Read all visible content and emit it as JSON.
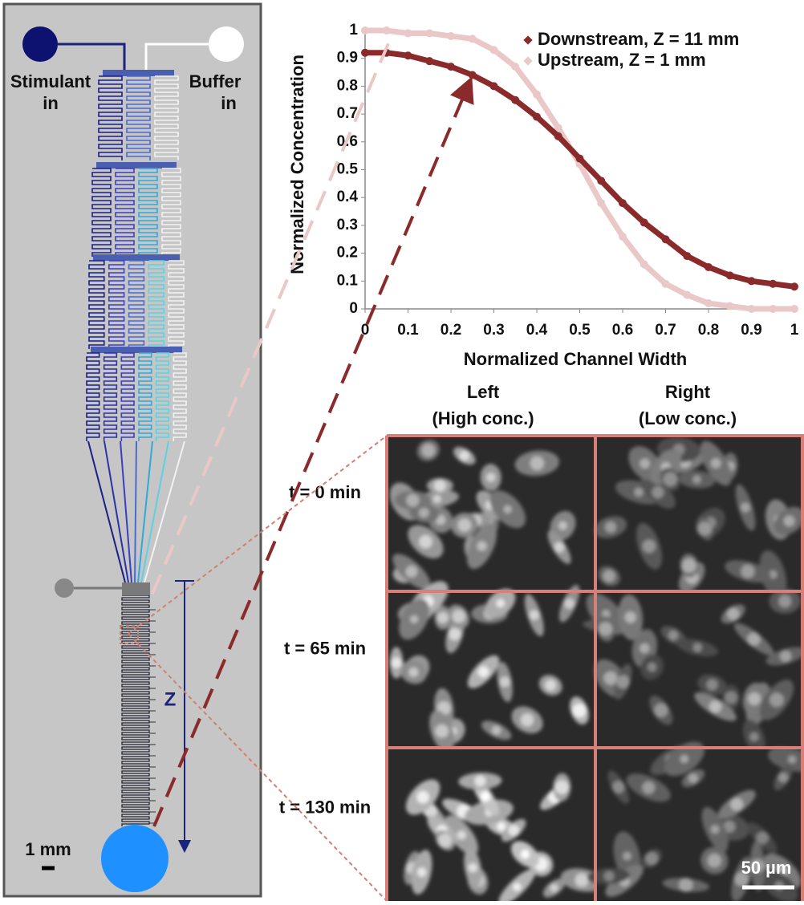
{
  "chart_data": {
    "type": "scatter",
    "x_label": "Normalized Channel Width",
    "y_label": "Normalized Concentration",
    "x": [
      0,
      0.05,
      0.1,
      0.15,
      0.2,
      0.25,
      0.3,
      0.35,
      0.4,
      0.45,
      0.5,
      0.55,
      0.6,
      0.65,
      0.7,
      0.75,
      0.8,
      0.85,
      0.9,
      0.95,
      1
    ],
    "series": [
      {
        "name": "Downstream, Z = 11 mm",
        "color": "#8b2a2a",
        "values": [
          0.92,
          0.92,
          0.91,
          0.89,
          0.87,
          0.84,
          0.8,
          0.75,
          0.69,
          0.62,
          0.54,
          0.46,
          0.38,
          0.31,
          0.25,
          0.19,
          0.15,
          0.12,
          0.1,
          0.09,
          0.08
        ]
      },
      {
        "name": "Upstream, Z = 1 mm",
        "color": "#ebc8c8",
        "values": [
          1.0,
          1.0,
          0.99,
          0.99,
          0.98,
          0.97,
          0.93,
          0.87,
          0.77,
          0.65,
          0.52,
          0.38,
          0.26,
          0.16,
          0.09,
          0.05,
          0.02,
          0.01,
          0.0,
          0.0,
          0.0
        ]
      }
    ],
    "xlim": [
      0,
      1
    ],
    "ylim": [
      0,
      1
    ],
    "xticks": [
      0,
      0.1,
      0.2,
      0.3,
      0.4,
      0.5,
      0.6,
      0.7,
      0.8,
      0.9,
      1
    ],
    "yticks": [
      0,
      0.1,
      0.2,
      0.3,
      0.4,
      0.5,
      0.6,
      0.7,
      0.8,
      0.9,
      1
    ],
    "legend": "upper right",
    "grid": false
  },
  "device": {
    "stimulant": [
      "Stimulant",
      "in"
    ],
    "buffer": [
      "Buffer",
      "in"
    ],
    "z": "Z",
    "scale": "1 mm"
  },
  "images": {
    "columns": [
      [
        "Left",
        "(High conc.)"
      ],
      [
        "Right",
        "(Low conc.)"
      ]
    ],
    "rows": [
      "t = 0 min",
      "t = 65 min",
      "t = 130 min"
    ],
    "scale": "50 µm"
  }
}
